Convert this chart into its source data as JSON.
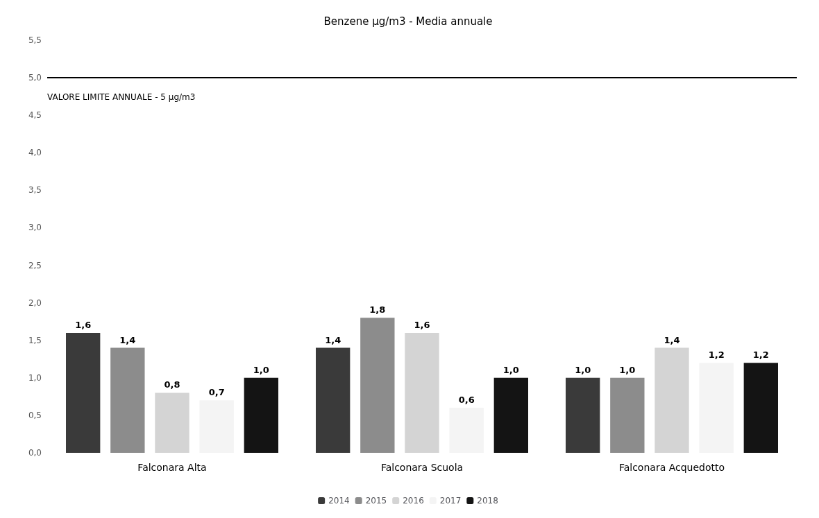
{
  "chart_data": {
    "type": "bar",
    "title": "Benzene µg/m3 - Media annuale",
    "categories": [
      "Falconara Alta",
      "Falconara Scuola",
      "Falconara Acquedotto"
    ],
    "series": [
      {
        "name": "2014",
        "color": "#3a3a3a",
        "values": [
          1.6,
          1.4,
          1.0
        ],
        "value_labels": [
          "1,6",
          "1,4",
          "1,0"
        ]
      },
      {
        "name": "2015",
        "color": "#8c8c8c",
        "values": [
          1.4,
          1.8,
          1.0
        ],
        "value_labels": [
          "1,4",
          "1,8",
          "1,0"
        ]
      },
      {
        "name": "2016",
        "color": "#d4d4d4",
        "values": [
          0.8,
          1.6,
          1.4
        ],
        "value_labels": [
          "0,8",
          "1,6",
          "1,4"
        ]
      },
      {
        "name": "2017",
        "color": "#f4f4f4",
        "values": [
          0.7,
          0.6,
          1.2
        ],
        "value_labels": [
          "0,7",
          "0,6",
          "1,2"
        ]
      },
      {
        "name": "2018",
        "color": "#141414",
        "values": [
          1.0,
          1.0,
          1.2
        ],
        "value_labels": [
          "1,0",
          "1,0",
          "1,2"
        ]
      }
    ],
    "ylim": [
      0,
      5.5
    ],
    "yticks": [
      {
        "value": 0,
        "label": "0,0"
      },
      {
        "value": 0.5,
        "label": "0,5"
      },
      {
        "value": 1,
        "label": "1,0"
      },
      {
        "value": 1.5,
        "label": "1,5"
      },
      {
        "value": 2,
        "label": "2,0"
      },
      {
        "value": 2.5,
        "label": "2,5"
      },
      {
        "value": 3,
        "label": "3,0"
      },
      {
        "value": 3.5,
        "label": "3,5"
      },
      {
        "value": 4,
        "label": "4,0"
      },
      {
        "value": 4.5,
        "label": "4,5"
      },
      {
        "value": 5,
        "label": "5,0"
      },
      {
        "value": 5.5,
        "label": "5,5"
      }
    ],
    "ref_lines": [
      {
        "axis": "y",
        "value": 5,
        "label": "VALORE LIMITE ANNUALE - 5 µg/m3",
        "color": "#000000"
      }
    ],
    "legend": "bottom",
    "grid": false
  }
}
